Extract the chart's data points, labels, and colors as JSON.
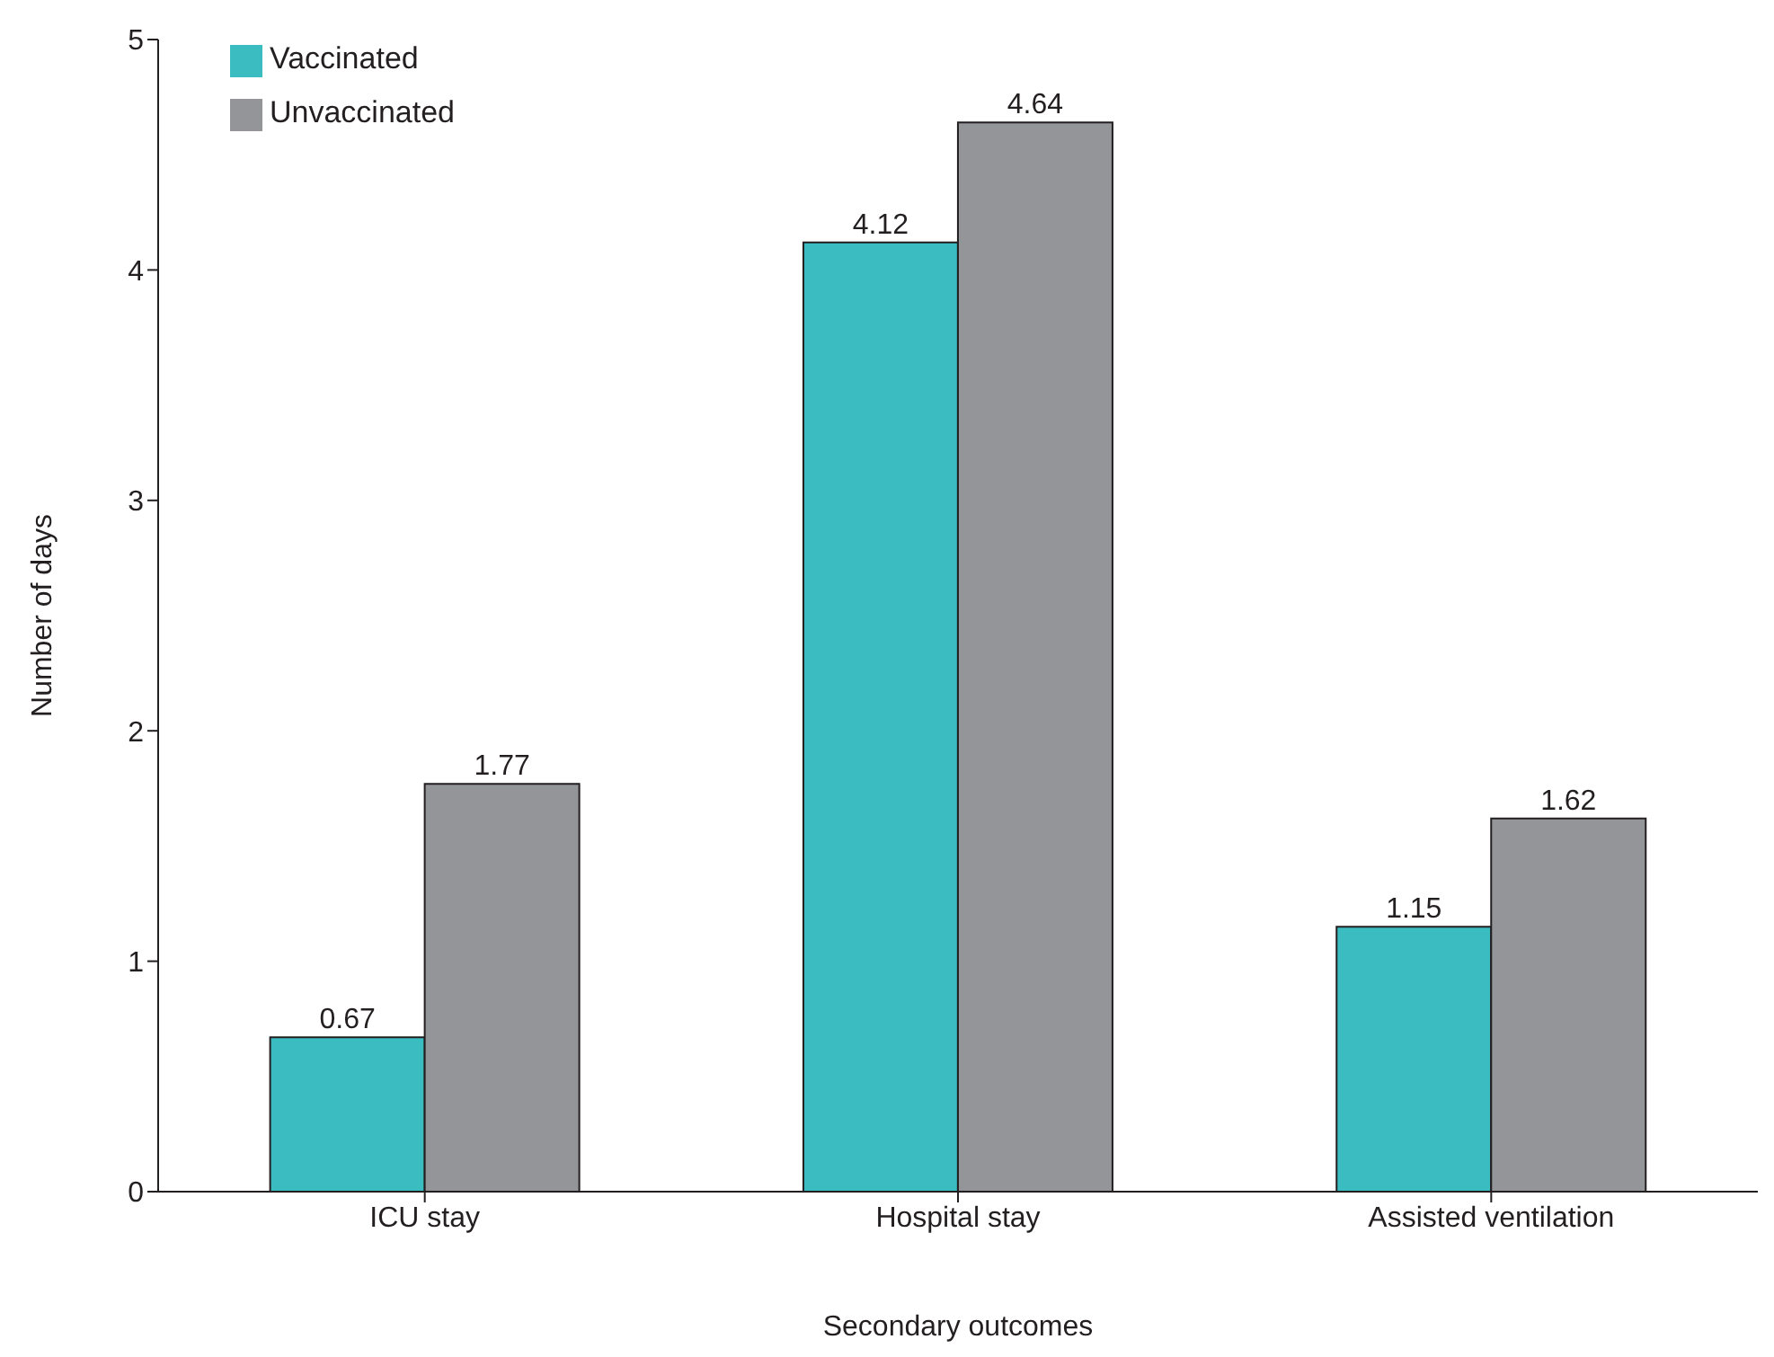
{
  "chart_data": {
    "type": "bar",
    "xlabel": "Secondary outcomes",
    "ylabel": "Number of days",
    "categories": [
      "ICU stay",
      "Hospital stay",
      "Assisted ventilation"
    ],
    "series": [
      {
        "name": "Vaccinated",
        "color": "#3bbcc0",
        "values": [
          0.67,
          4.12,
          1.15
        ]
      },
      {
        "name": "Unvaccinated",
        "color": "#939598",
        "values": [
          1.77,
          4.64,
          1.62
        ]
      }
    ],
    "ylim": [
      0,
      5
    ],
    "yticks": [
      0,
      1,
      2,
      3,
      4,
      5
    ],
    "grid": false,
    "legend": "top left",
    "data_labels": true
  }
}
